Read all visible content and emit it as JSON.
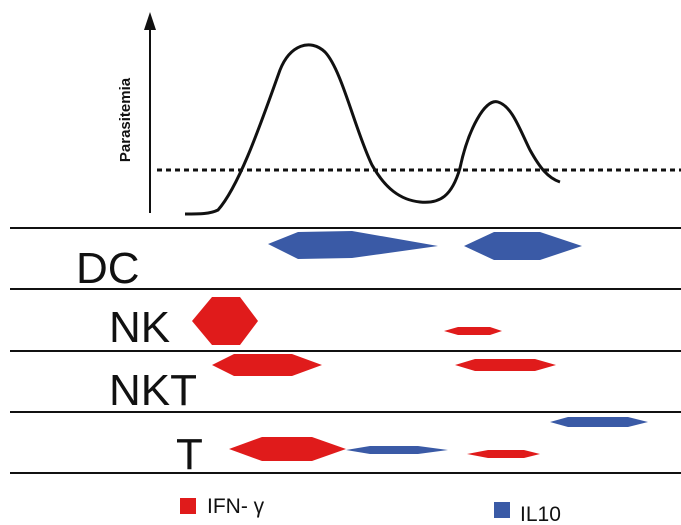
{
  "axis": {
    "y_label": "Parasitemia"
  },
  "lanes": [
    {
      "key": "dc",
      "label": "DC"
    },
    {
      "key": "nk",
      "label": "NK"
    },
    {
      "key": "nkt",
      "label": "NKT"
    },
    {
      "key": "t",
      "label": "T"
    }
  ],
  "legend": {
    "ifn": {
      "label": "IFN- γ",
      "color": "#e01b1b"
    },
    "il10": {
      "label": "IL10",
      "color": "#3a5aa6"
    }
  },
  "colors": {
    "red": "#e01b1b",
    "blue": "#3a5aa6",
    "ink": "#111111"
  }
}
